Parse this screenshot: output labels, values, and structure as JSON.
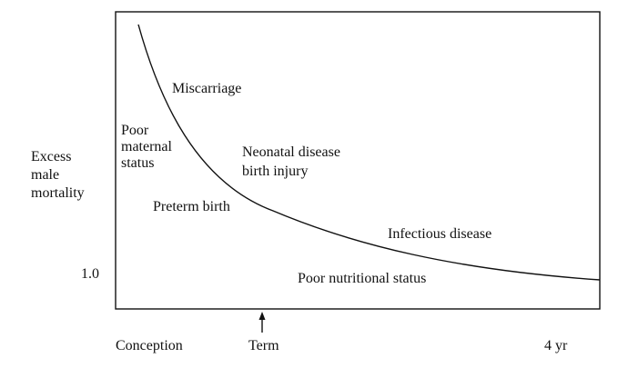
{
  "chart_data": {
    "type": "line",
    "title": "",
    "ylabel": [
      "Excess",
      "male",
      "mortality"
    ],
    "xlabel": "",
    "x_ticks": [
      "Conception",
      "Term",
      "4 yr"
    ],
    "y_ticks": [
      "1.0"
    ],
    "annotations": {
      "miscarriage": "Miscarriage",
      "poor_maternal": [
        "Poor",
        "maternal",
        "status"
      ],
      "neonatal": [
        "Neonatal disease",
        "birth injury"
      ],
      "preterm": "Preterm birth",
      "infectious": "Infectious disease",
      "poor_nutritional": "Poor nutritional status"
    },
    "curve_color": "#111111"
  }
}
